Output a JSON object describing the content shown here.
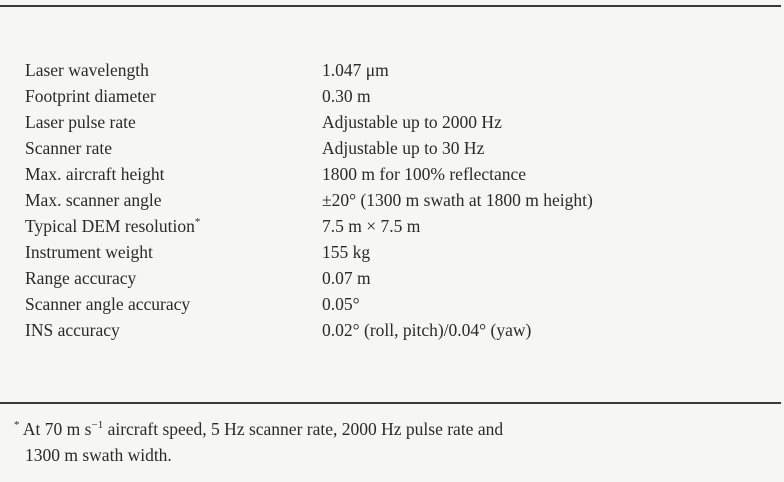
{
  "table": {
    "rows": [
      {
        "parameter": "Laser wavelength",
        "value": "1.047 μm"
      },
      {
        "parameter": "Footprint diameter",
        "value": "0.30 m"
      },
      {
        "parameter": "Laser pulse rate",
        "value": "Adjustable up to 2000 Hz"
      },
      {
        "parameter": "Scanner rate",
        "value": "Adjustable up to 30 Hz"
      },
      {
        "parameter": "Max. aircraft height",
        "value": "1800 m for 100% reflectance"
      },
      {
        "parameter": "Max. scanner angle",
        "value": "±20° (1300 m swath at 1800 m height)"
      },
      {
        "parameter": "Typical DEM resolution",
        "marker": "*",
        "value": "7.5 m × 7.5 m"
      },
      {
        "parameter": "Instrument weight",
        "value": "155 kg"
      },
      {
        "parameter": "Range accuracy",
        "value": "0.07 m"
      },
      {
        "parameter": "Scanner angle accuracy",
        "value": "0.05°"
      },
      {
        "parameter": "INS accuracy",
        "value": "0.02° (roll, pitch)/0.04° (yaw)"
      }
    ]
  },
  "footnote": {
    "marker": "*",
    "text_before_sup": "At 70 m s",
    "sup": "−1",
    "text_after_sup": " aircraft speed, 5 Hz scanner rate, 2000 Hz pulse rate and",
    "line2": "1300 m swath width."
  }
}
